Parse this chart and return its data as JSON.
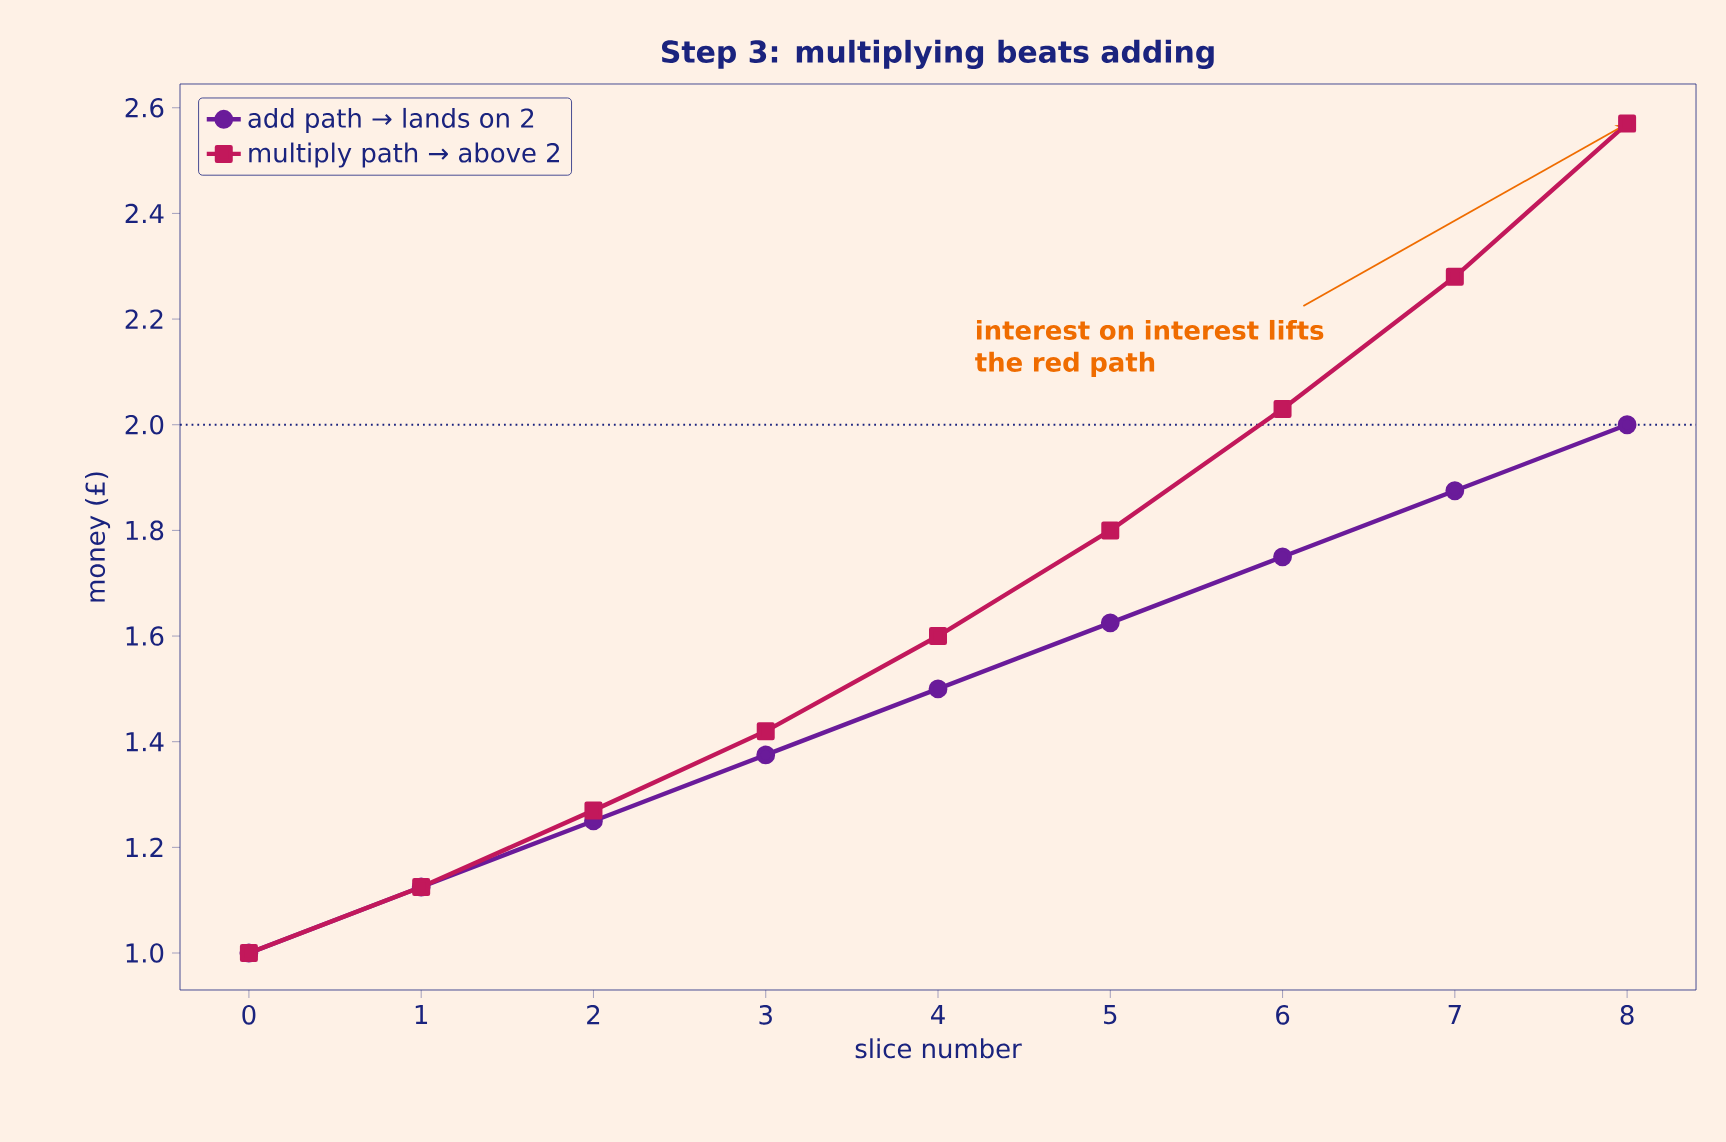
{
  "chart_data": {
    "type": "line",
    "title": "Step 3: multiplying beats adding",
    "xlabel": "slice number",
    "ylabel": "money (£)",
    "x": [
      0,
      1,
      2,
      3,
      4,
      5,
      6,
      7,
      8
    ],
    "series": [
      {
        "name": "add path → lands on 2",
        "color": "#6a1b9a",
        "marker": "circle",
        "values": [
          1.0,
          1.125,
          1.25,
          1.375,
          1.5,
          1.625,
          1.75,
          1.875,
          2.0
        ]
      },
      {
        "name": "multiply path → above 2",
        "color": "#c2185b",
        "marker": "square",
        "values": [
          1.0,
          1.125,
          1.27,
          1.42,
          1.6,
          1.8,
          2.03,
          2.28,
          2.57
        ]
      }
    ],
    "xlim": [
      -0.4,
      8.4
    ],
    "ylim": [
      0.93,
      2.645
    ],
    "xticks": [
      0,
      1,
      2,
      3,
      4,
      5,
      6,
      7,
      8
    ],
    "yticks": [
      {
        "value": 1.0,
        "label": "1.0"
      },
      {
        "value": 1.2,
        "label": "1.2"
      },
      {
        "value": 1.4,
        "label": "1.4"
      },
      {
        "value": 1.6,
        "label": "1.6"
      },
      {
        "value": 1.8,
        "label": "1.8"
      },
      {
        "value": 2.0,
        "label": "2.0"
      },
      {
        "value": 2.2,
        "label": "2.2"
      },
      {
        "value": 2.4,
        "label": "2.4"
      },
      {
        "value": 2.6,
        "label": "2.6"
      }
    ],
    "ref_lines": [
      {
        "axis": "y",
        "value": 2.0,
        "color": "#1a237e",
        "line_style": "dotted"
      }
    ],
    "annotations": [
      {
        "text": "interest on interest lifts the red path",
        "x": 8,
        "y": 2.57
      }
    ],
    "legend": "top left",
    "grid": false,
    "line_style": "solid"
  }
}
